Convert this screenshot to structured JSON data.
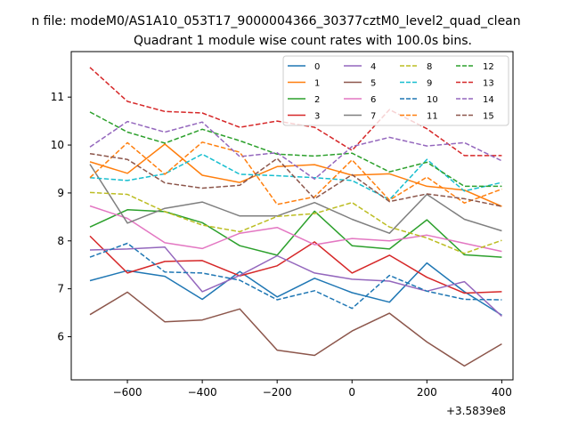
{
  "chart_data": {
    "type": "line",
    "suptitle": "n file: modeM0/AS1A10_053T17_9000004366_30377cztM0_level2_quad_clean",
    "title": "Quadrant 1 module wise count rates with 100.0s bins.",
    "xlabel": "",
    "ylabel": "",
    "x": [
      -700,
      -600,
      -500,
      -400,
      -300,
      -200,
      -100,
      0,
      100,
      200,
      300,
      400
    ],
    "xlim": [
      -750,
      430
    ],
    "ylim": [
      5.1,
      11.95
    ],
    "xticks": [
      -600,
      -400,
      -200,
      0,
      200,
      400
    ],
    "xtick_labels": [
      "−600",
      "−400",
      "−200",
      "0",
      "200",
      "400"
    ],
    "yticks": [
      6,
      7,
      8,
      9,
      10,
      11
    ],
    "ytick_labels": [
      "6",
      "7",
      "8",
      "9",
      "10",
      "11"
    ],
    "offset_label": "+3.5839e8",
    "grid": false,
    "legend_position": "top-right",
    "series": [
      {
        "name": "0",
        "color": "#1f77b4",
        "dash": "solid",
        "values": [
          7.17,
          7.38,
          7.26,
          6.78,
          7.36,
          6.83,
          7.22,
          6.92,
          6.72,
          7.54,
          6.94,
          6.45
        ]
      },
      {
        "name": "1",
        "color": "#ff7f0e",
        "dash": "solid",
        "values": [
          9.65,
          9.41,
          10.02,
          9.37,
          9.22,
          9.55,
          9.59,
          9.37,
          9.4,
          9.14,
          9.06,
          8.72
        ]
      },
      {
        "name": "2",
        "color": "#2ca02c",
        "dash": "solid",
        "values": [
          8.29,
          8.65,
          8.61,
          8.38,
          7.9,
          7.7,
          8.62,
          7.9,
          7.83,
          8.44,
          7.71,
          7.66
        ]
      },
      {
        "name": "3",
        "color": "#d62728",
        "dash": "solid",
        "values": [
          8.1,
          7.33,
          7.57,
          7.59,
          7.27,
          7.48,
          7.98,
          7.33,
          7.7,
          7.24,
          6.91,
          6.94
        ]
      },
      {
        "name": "4",
        "color": "#9467bd",
        "dash": "solid",
        "values": [
          7.81,
          7.83,
          7.87,
          6.94,
          7.28,
          7.69,
          7.33,
          7.2,
          7.16,
          6.95,
          7.15,
          6.43
        ]
      },
      {
        "name": "5",
        "color": "#8c564b",
        "dash": "solid",
        "values": [
          6.46,
          6.93,
          6.31,
          6.35,
          6.58,
          5.72,
          5.61,
          6.12,
          6.49,
          5.89,
          5.39,
          5.85
        ]
      },
      {
        "name": "6",
        "color": "#e377c2",
        "dash": "solid",
        "values": [
          8.73,
          8.47,
          7.96,
          7.84,
          8.16,
          8.28,
          7.92,
          8.05,
          8.0,
          8.12,
          7.95,
          7.78
        ]
      },
      {
        "name": "7",
        "color": "#7f7f7f",
        "dash": "solid",
        "values": [
          9.6,
          8.37,
          8.68,
          8.81,
          8.52,
          8.52,
          8.8,
          8.45,
          8.16,
          8.97,
          8.45,
          8.21
        ]
      },
      {
        "name": "8",
        "color": "#bcbd22",
        "dash": "dashed",
        "values": [
          9.01,
          8.97,
          8.61,
          8.33,
          8.19,
          8.51,
          8.57,
          8.8,
          8.29,
          8.06,
          7.74,
          8.01
        ]
      },
      {
        "name": "9",
        "color": "#17becf",
        "dash": "dashed",
        "values": [
          9.32,
          9.26,
          9.4,
          9.81,
          9.39,
          9.36,
          9.32,
          9.26,
          8.86,
          9.7,
          9.04,
          9.22
        ]
      },
      {
        "name": "10",
        "color": "#1f77b4",
        "dash": "dashed",
        "values": [
          7.66,
          7.95,
          7.35,
          7.33,
          7.18,
          6.77,
          6.96,
          6.59,
          7.28,
          6.95,
          6.78,
          6.77
        ]
      },
      {
        "name": "11",
        "color": "#ff7f0e",
        "dash": "dashed",
        "values": [
          9.32,
          10.05,
          9.39,
          10.06,
          9.85,
          8.76,
          8.92,
          9.69,
          8.85,
          9.33,
          8.79,
          9.08
        ]
      },
      {
        "name": "12",
        "color": "#2ca02c",
        "dash": "dashed",
        "values": [
          10.69,
          10.27,
          10.04,
          10.33,
          10.09,
          9.81,
          9.77,
          9.83,
          9.44,
          9.64,
          9.14,
          9.14
        ]
      },
      {
        "name": "13",
        "color": "#d62728",
        "dash": "dashed",
        "values": [
          11.62,
          10.91,
          10.7,
          10.67,
          10.37,
          10.5,
          10.37,
          9.89,
          10.74,
          10.34,
          9.78,
          9.78
        ]
      },
      {
        "name": "14",
        "color": "#9467bd",
        "dash": "dashed",
        "values": [
          9.96,
          10.49,
          10.27,
          10.48,
          9.76,
          9.84,
          9.29,
          9.97,
          10.16,
          9.98,
          10.05,
          9.67
        ]
      },
      {
        "name": "15",
        "color": "#8c564b",
        "dash": "dashed",
        "values": [
          9.82,
          9.7,
          9.21,
          9.1,
          9.16,
          9.72,
          8.88,
          9.38,
          8.82,
          8.98,
          8.88,
          8.72
        ]
      }
    ]
  }
}
